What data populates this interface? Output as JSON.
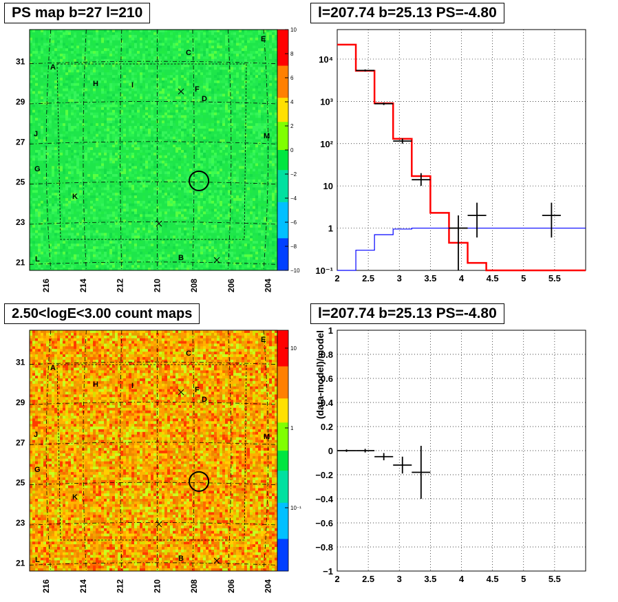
{
  "panels": {
    "tl_title": "PS map b=27 l=210",
    "tr_title": "l=207.74 b=25.13 PS=-4.80",
    "bl_title": "2.50<logE<3.00 count maps",
    "br_title": "l=207.74 b=25.13 PS=-4.80"
  },
  "chart_data": [
    {
      "type": "heatmap",
      "id": "ps_map",
      "x_ticks": [
        "216",
        "214",
        "212",
        "210",
        "208",
        "206",
        "204"
      ],
      "y_ticks": [
        "31",
        "29",
        "27",
        "25",
        "23",
        "21"
      ],
      "colorbar": {
        "min": -10,
        "max": 10,
        "ticks": [
          "10",
          "8",
          "6",
          "4",
          "2",
          "0",
          "−2",
          "−4",
          "−6",
          "−8",
          "−10"
        ]
      },
      "sources": [
        "A",
        "B",
        "C",
        "D",
        "E",
        "F",
        "G",
        "H",
        "I",
        "J",
        "K",
        "L",
        "M"
      ],
      "circle": {
        "l": 207.74,
        "b": 25.13
      }
    },
    {
      "type": "line",
      "id": "spectrum",
      "y_scale": "log",
      "xlim": [
        2,
        6
      ],
      "ylim": [
        0.1,
        50000
      ],
      "x_ticks": [
        "2",
        "2.5",
        "3",
        "3.5",
        "4",
        "4.5",
        "5",
        "5.5"
      ],
      "y_ticks": [
        "10⁴",
        "10³",
        "10²",
        "10",
        "1",
        "10⁻¹"
      ],
      "series": [
        {
          "color": "#ff0000",
          "edges": [
            2.0,
            2.3,
            2.6,
            2.9,
            3.2,
            3.5,
            3.8,
            4.1,
            4.4,
            6.0
          ],
          "values": [
            22000,
            5300,
            900,
            130,
            17,
            2.3,
            0.45,
            0.15,
            0.1
          ]
        },
        {
          "color": "#0000ff",
          "edges": [
            2.0,
            2.3,
            2.6,
            2.9,
            3.2,
            3.5,
            3.8,
            6.0
          ],
          "values": [
            0.03,
            0.3,
            0.7,
            0.95,
            1,
            1,
            1
          ]
        }
      ],
      "points": [
        {
          "x": 2.45,
          "xerr": 0.15,
          "y": 5400,
          "ylo": 5100,
          "yhi": 5700
        },
        {
          "x": 2.75,
          "xerr": 0.15,
          "y": 880,
          "ylo": 820,
          "yhi": 940
        },
        {
          "x": 3.05,
          "xerr": 0.15,
          "y": 115,
          "ylo": 100,
          "yhi": 132
        },
        {
          "x": 3.35,
          "xerr": 0.15,
          "y": 14,
          "ylo": 10,
          "yhi": 20
        },
        {
          "x": 3.95,
          "xerr": 0.15,
          "y": 1,
          "ylo": 0.05,
          "yhi": 2.0
        },
        {
          "x": 4.25,
          "xerr": 0.15,
          "y": 2,
          "ylo": 0.6,
          "yhi": 4.0
        },
        {
          "x": 5.45,
          "xerr": 0.15,
          "y": 2,
          "ylo": 0.6,
          "yhi": 4.0
        }
      ]
    },
    {
      "type": "heatmap",
      "id": "count_map",
      "x_ticks": [
        "216",
        "214",
        "212",
        "210",
        "208",
        "206",
        "204"
      ],
      "y_ticks": [
        "31",
        "29",
        "27",
        "25",
        "23",
        "21"
      ],
      "colorbar": {
        "scale": "log",
        "ticks": [
          "10",
          "1",
          "10⁻¹"
        ]
      },
      "sources": [
        "A",
        "B",
        "C",
        "D",
        "E",
        "F",
        "G",
        "H",
        "I",
        "J",
        "K",
        "L",
        "M"
      ],
      "circle": {
        "l": 207.74,
        "b": 25.13
      }
    },
    {
      "type": "scatter",
      "id": "residuals",
      "ylabel": "(data-model)/model",
      "xlim": [
        2,
        6
      ],
      "ylim": [
        -1,
        1
      ],
      "x_ticks": [
        "2",
        "2.5",
        "3",
        "3.5",
        "4",
        "4.5",
        "5",
        "5.5"
      ],
      "y_ticks": [
        "1",
        "0.8",
        "0.6",
        "0.4",
        "0.2",
        "0",
        "−0.2",
        "−0.4",
        "−0.6",
        "−0.8",
        "−1"
      ],
      "points": [
        {
          "x": 2.15,
          "xerr": 0.15,
          "y": 0.0,
          "err": 0.01
        },
        {
          "x": 2.45,
          "xerr": 0.15,
          "y": 0.0,
          "err": 0.015
        },
        {
          "x": 2.75,
          "xerr": 0.15,
          "y": -0.05,
          "err": 0.03
        },
        {
          "x": 3.05,
          "xerr": 0.15,
          "y": -0.12,
          "err": 0.07
        },
        {
          "x": 3.35,
          "xerr": 0.15,
          "y": -0.18,
          "err": 0.22
        }
      ]
    }
  ]
}
